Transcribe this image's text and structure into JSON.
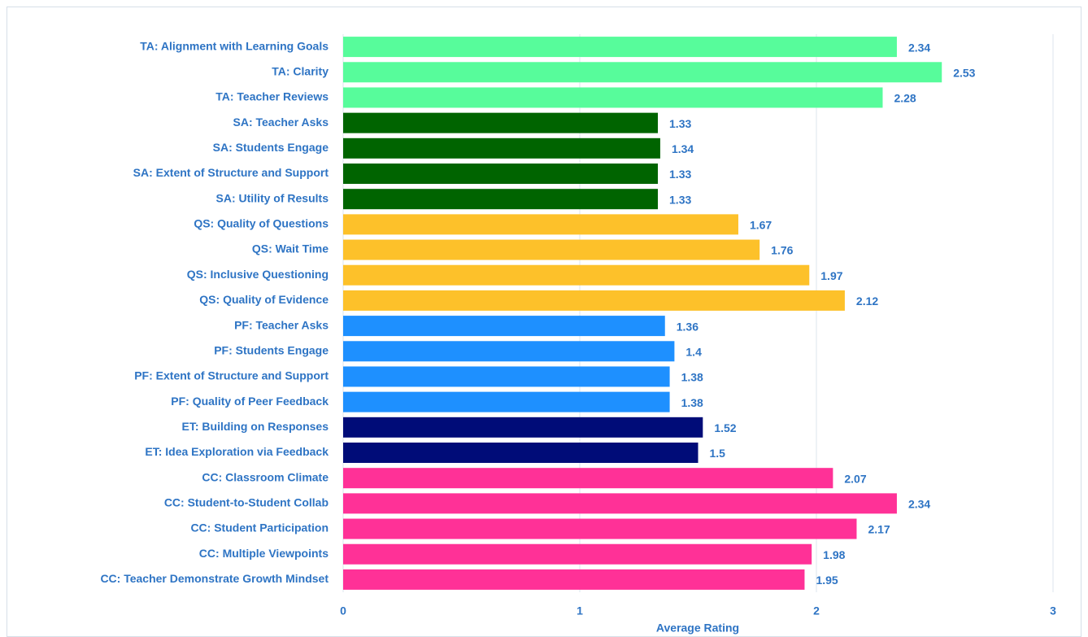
{
  "chart_data": {
    "type": "hbar",
    "xlabel": "Average Rating",
    "categories": [
      "TA: Alignment with Learning Goals",
      "TA: Clarity",
      "TA: Teacher Reviews",
      "SA: Teacher Asks",
      "SA: Students Engage",
      "SA: Extent of Structure and Support",
      "SA: Utility of Results",
      "QS: Quality of Questions",
      "QS: Wait Time",
      "QS: Inclusive Questioning",
      "QS: Quality of Evidence",
      "PF: Teacher Asks",
      "PF: Students Engage",
      "PF: Extent of Structure and Support",
      "PF: Quality of Peer Feedback",
      "ET: Building on Responses",
      "ET: Idea Exploration via Feedback",
      "CC: Classroom Climate",
      "CC: Student-to-Student Collab",
      "CC: Student Participation",
      "CC: Multiple Viewpoints",
      "CC: Teacher Demonstrate Growth Mindset"
    ],
    "values": [
      2.34,
      2.53,
      2.28,
      1.33,
      1.34,
      1.33,
      1.33,
      1.67,
      1.76,
      1.97,
      2.12,
      1.36,
      1.4,
      1.38,
      1.38,
      1.52,
      1.5,
      2.07,
      2.34,
      2.17,
      1.98,
      1.95
    ],
    "colors": [
      "#57fc9b",
      "#57fc9b",
      "#57fc9b",
      "#006400",
      "#006400",
      "#006400",
      "#006400",
      "#fdc12a",
      "#fdc12a",
      "#fdc12a",
      "#fdc12a",
      "#1e90ff",
      "#1e90ff",
      "#1e90ff",
      "#1e90ff",
      "#000c78",
      "#000c78",
      "#ff3197",
      "#ff3197",
      "#ff3197",
      "#ff3197",
      "#ff3197"
    ],
    "xlim": [
      0,
      3
    ],
    "xticks": [
      0,
      1,
      2,
      3
    ],
    "grid": true
  }
}
